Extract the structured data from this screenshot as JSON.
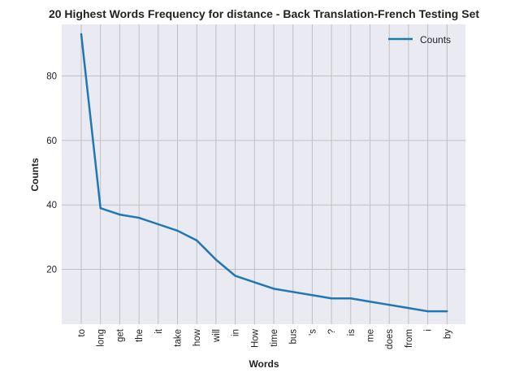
{
  "chart_data": {
    "type": "line",
    "title": "20 Highest Words Frequency for distance - Back Translation-French Testing Set",
    "xlabel": "Words",
    "ylabel": "Counts",
    "categories": [
      "to",
      "long",
      "get",
      "the",
      "it",
      "take",
      "how",
      "will",
      "in",
      "How",
      "time",
      "bus",
      "'s",
      "?",
      "is",
      "me",
      "does",
      "from",
      "i",
      "by"
    ],
    "series": [
      {
        "name": "Counts",
        "color": "#1f77b4",
        "values": [
          93,
          39,
          37,
          36,
          34,
          32,
          29,
          23,
          18,
          16,
          14,
          13,
          12,
          11,
          11,
          10,
          9,
          8,
          7,
          7
        ]
      }
    ],
    "ylim": [
      3,
      96
    ],
    "yticks": [
      20,
      40,
      60,
      80
    ],
    "grid": true,
    "legend": "top-right",
    "colors": {
      "background": "#eaeaf2",
      "grid": "#c0c0c0",
      "line": "#1f77b4"
    }
  }
}
